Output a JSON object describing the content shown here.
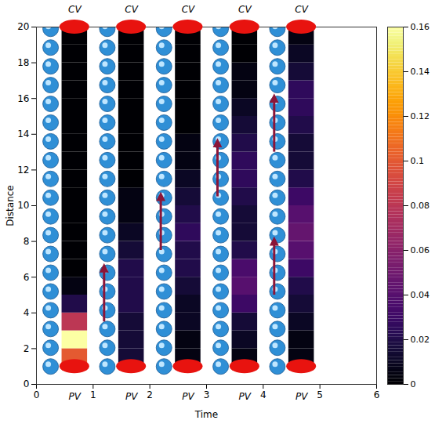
{
  "chart_data": {
    "type": "heatmap",
    "x_label": "Time",
    "y_label": "Distance",
    "xlim": [
      0,
      6
    ],
    "xticks": [
      0,
      1,
      2,
      3,
      4,
      5,
      6
    ],
    "ylim": [
      0,
      20
    ],
    "yticks": [
      0,
      2,
      4,
      6,
      8,
      10,
      12,
      14,
      16,
      18,
      20
    ],
    "distance_bins": [
      1,
      2,
      3,
      4,
      5,
      6,
      7,
      8,
      9,
      10,
      11,
      12,
      13,
      14,
      15,
      16,
      17,
      18,
      19,
      20
    ],
    "panels": [
      {
        "time": [
          0.45,
          0.9
        ],
        "top_label": "CV",
        "bottom_label": "PV",
        "values": [
          0.1,
          0.16,
          0.08,
          0.02,
          0.005,
          0,
          0,
          0,
          0,
          0,
          0,
          0,
          0,
          0,
          0,
          0,
          0,
          0,
          0
        ]
      },
      {
        "time": [
          1.45,
          1.9
        ],
        "top_label": "CV",
        "bottom_label": "PV",
        "values": [
          0.015,
          0.015,
          0.015,
          0.02,
          0.02,
          0.02,
          0.015,
          0.01,
          0.005,
          0.005,
          0,
          0,
          0,
          0,
          0,
          0,
          0,
          0,
          0
        ]
      },
      {
        "time": [
          2.45,
          2.9
        ],
        "top_label": "CV",
        "bottom_label": "PV",
        "values": [
          0.005,
          0.005,
          0.01,
          0.01,
          0.015,
          0.02,
          0.02,
          0.025,
          0.02,
          0.015,
          0.01,
          0.005,
          0.005,
          0,
          0,
          0,
          0,
          0,
          0
        ]
      },
      {
        "time": [
          3.45,
          3.9
        ],
        "top_label": "CV",
        "bottom_label": "PV",
        "values": [
          0.005,
          0.01,
          0.015,
          0.03,
          0.04,
          0.035,
          0.02,
          0.015,
          0.015,
          0.02,
          0.025,
          0.025,
          0.02,
          0.015,
          0.01,
          0.005,
          0.005,
          0,
          0
        ]
      },
      {
        "time": [
          4.45,
          4.9
        ],
        "top_label": "CV",
        "bottom_label": "PV",
        "values": [
          0.005,
          0.005,
          0.01,
          0.015,
          0.02,
          0.03,
          0.04,
          0.045,
          0.04,
          0.03,
          0.02,
          0.015,
          0.015,
          0.02,
          0.025,
          0.025,
          0.015,
          0.01,
          0.005
        ]
      }
    ],
    "colorbar": {
      "lim": [
        0,
        0.16
      ],
      "ticks": [
        0,
        0.02,
        0.04,
        0.06,
        0.08,
        0.1,
        0.12,
        0.14,
        0.16
      ]
    }
  }
}
